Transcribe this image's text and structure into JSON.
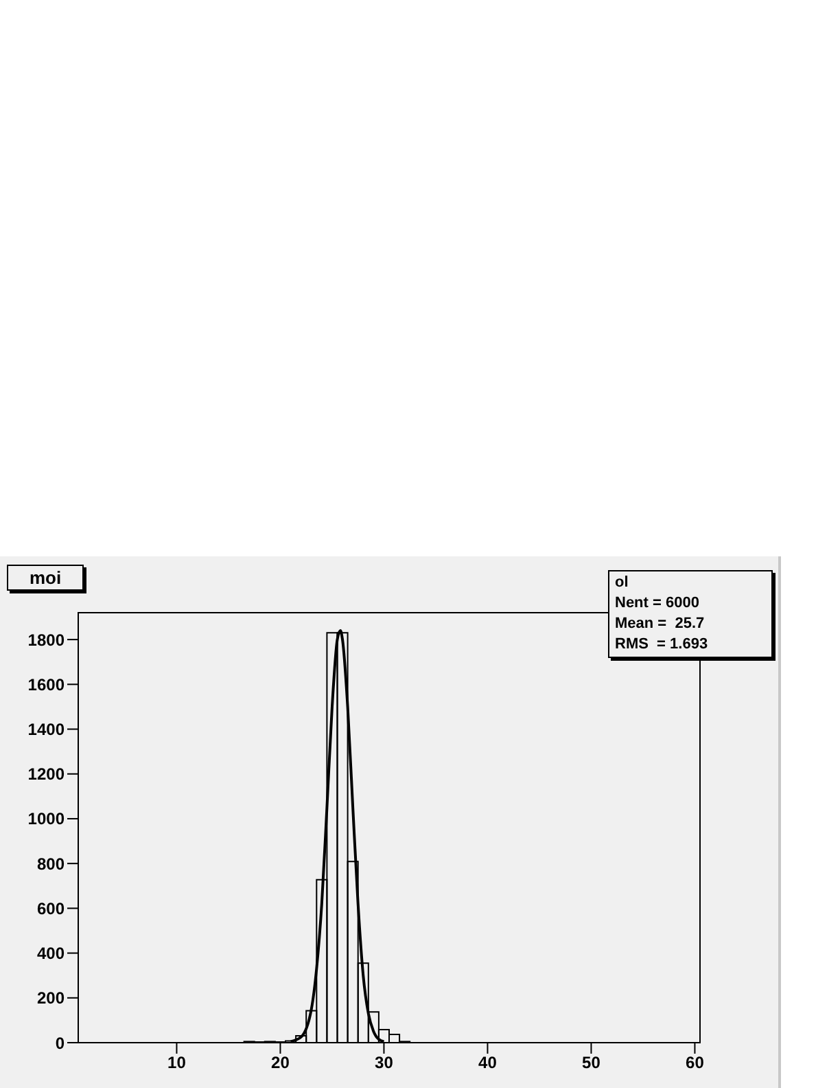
{
  "chart_data": {
    "type": "histogram",
    "title": "moi",
    "bins": [
      0.5,
      1.5,
      2.5,
      3.5,
      4.5,
      5.5,
      6.5,
      7.5,
      8.5,
      9.5,
      10.5,
      11.5,
      12.5,
      13.5,
      14.5,
      15.5,
      16.5,
      17.5,
      18.5,
      19.5,
      20.5,
      21.5,
      22.5,
      23.5,
      24.5,
      25.5,
      26.5,
      27.5,
      28.5,
      29.5,
      30.5,
      31.5,
      32.5,
      33.5,
      34.5,
      35.5,
      36.5,
      37.5,
      38.5,
      39.5,
      40.5,
      41.5,
      42.5,
      43.5,
      44.5,
      45.5,
      46.5,
      47.5,
      48.5,
      49.5,
      50.5,
      51.5,
      52.5,
      53.5,
      54.5,
      55.5,
      56.5,
      57.5,
      58.5,
      59.5,
      60.5
    ],
    "values": [
      0,
      0,
      0,
      0,
      0,
      0,
      0,
      0,
      0,
      0,
      0,
      0,
      0,
      0,
      0,
      0,
      5,
      3,
      5,
      3,
      8,
      31,
      143,
      728,
      1830,
      1830,
      809,
      355,
      137,
      58,
      37,
      5,
      0,
      0,
      0,
      0,
      0,
      0,
      0,
      0,
      0,
      0,
      0,
      0,
      0,
      0,
      0,
      0,
      0,
      0,
      0,
      0,
      0,
      0,
      0,
      0,
      0,
      0,
      0,
      0
    ],
    "color": "#000000",
    "series": [
      {
        "type": "line",
        "color": "#000000",
        "x": [
          21,
          22,
          23,
          23.5,
          24,
          24.5,
          25,
          25.5,
          25.8,
          26,
          26.5,
          27,
          27.5,
          28,
          28.5,
          29,
          29.5,
          30
        ],
        "values": [
          5,
          25,
          150,
          330,
          620,
          1050,
          1500,
          1800,
          1840,
          1800,
          1500,
          1050,
          620,
          300,
          130,
          50,
          15,
          5
        ]
      }
    ],
    "xlim": [
      0.5,
      60.5
    ],
    "xticks": [
      10,
      20,
      30,
      40,
      50,
      60
    ],
    "ylim": [
      0,
      1920
    ],
    "yticks": [
      0,
      200,
      400,
      600,
      800,
      1000,
      1200,
      1400,
      1600,
      1800
    ],
    "grid": false,
    "legend": false,
    "marker": "none",
    "line_style": "solid",
    "annotations": [
      "ol",
      "Nent = 6000",
      "Mean =  25.7",
      "RMS  = 1.693"
    ]
  }
}
